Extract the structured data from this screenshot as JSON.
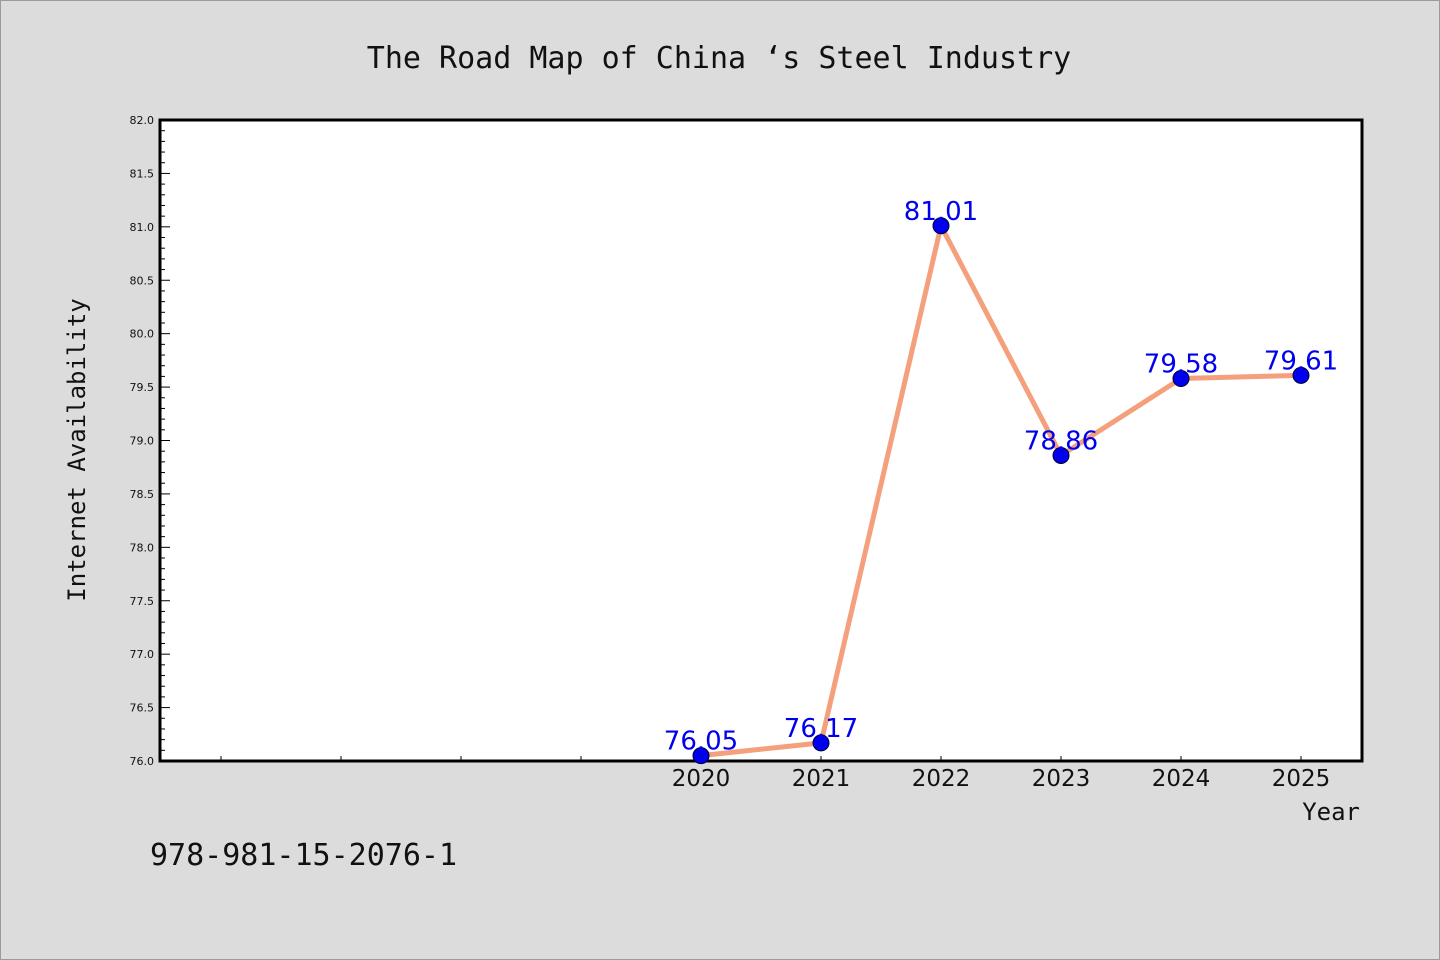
{
  "chart_data": {
    "type": "line",
    "title": "The Road Map of China ‘s Steel Industry",
    "xlabel": "Year",
    "ylabel": "Internet Availability",
    "x": [
      "2020",
      "2021",
      "2022",
      "2023",
      "2024",
      "2025"
    ],
    "series": [
      {
        "values": [
          76.05,
          76.17,
          81.01,
          78.86,
          79.58,
          79.61
        ]
      }
    ],
    "data_labels": [
      "76.05",
      "76.17",
      "81.01",
      "78.86",
      "79.58",
      "79.61"
    ],
    "ylim": [
      76.0,
      82.0
    ],
    "yticks": [
      "76.0",
      "76.5",
      "77.0",
      "77.5",
      "78.0",
      "78.5",
      "79.0",
      "79.5",
      "80.0",
      "80.5",
      "81.0",
      "81.5",
      "82.0"
    ],
    "grid": false,
    "legend": "none",
    "colors": {
      "line": "#f4a07c",
      "marker": "#0000ee",
      "label": "#0000ee"
    }
  },
  "footer": {
    "isbn": "978-981-15-2076-1"
  }
}
